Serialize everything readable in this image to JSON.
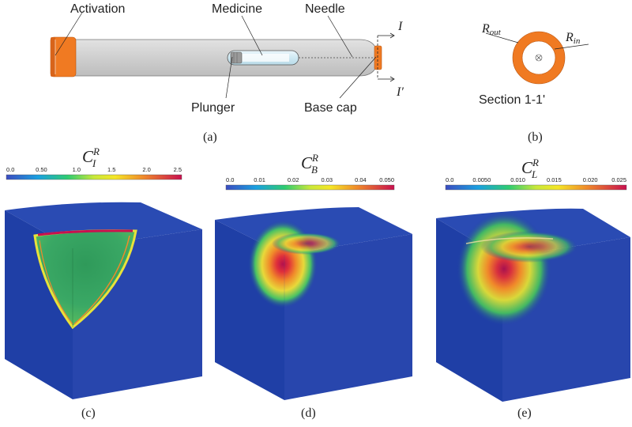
{
  "panel_a": {
    "labels": {
      "activation": "Activation",
      "medicine": "Medicine",
      "needle": "Needle",
      "plunger": "Plunger",
      "base_cap": "Base cap",
      "section_top": "I",
      "section_bottom": "I′"
    },
    "caption": "(a)"
  },
  "panel_b": {
    "r_out_main": "R",
    "r_out_sub": "out",
    "r_in_main": "R",
    "r_in_sub": "in",
    "section": "Section 1-1'",
    "caption": "(b)"
  },
  "panels": [
    {
      "caption": "(c)",
      "title_main": "C",
      "title_sup": "R",
      "title_sub": "I",
      "ticks": [
        "0.0",
        "0.50",
        "1.0",
        "1.5",
        "2.0",
        "2.5"
      ]
    },
    {
      "caption": "(d)",
      "title_main": "C",
      "title_sup": "R",
      "title_sub": "B",
      "ticks": [
        "0.0",
        "0.01",
        "0.02",
        "0.03",
        "0.04",
        "0.050"
      ]
    },
    {
      "caption": "(e)",
      "title_main": "C",
      "title_sup": "R",
      "title_sub": "L",
      "ticks": [
        "0.0",
        "0.0050",
        "0.010",
        "0.015",
        "0.020",
        "0.025"
      ]
    }
  ],
  "colors": {
    "orange": "#f07a22",
    "cube_blue": "#1f3fa6",
    "cube_blue_dark": "#18328a",
    "cube_top": "#2a4bb3"
  }
}
